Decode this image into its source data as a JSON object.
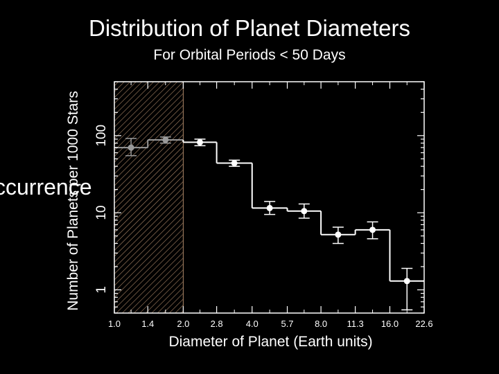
{
  "slide": {
    "title": "Distribution of Planet Diameters",
    "subtitle": "For Orbital Periods < 50 Days",
    "overlay_text": "ccurrence"
  },
  "colors": {
    "background": "#000000",
    "foreground": "#ffffff",
    "excluded_points": "#9a9a9a",
    "hatch": "#b08a6a"
  },
  "chart_data": {
    "type": "histogram-step",
    "x_scale": "log",
    "y_scale": "log",
    "xlim": [
      1.0,
      22.6
    ],
    "ylim": [
      0.5,
      500
    ],
    "xlabel": "Diameter of Planet (Earth units)",
    "ylabel": "Number of Planets per 1000 Stars",
    "x_ticks": [
      {
        "value": 1.0,
        "label": "1.0"
      },
      {
        "value": 1.4,
        "label": "1.4"
      },
      {
        "value": 2.0,
        "label": "2.0"
      },
      {
        "value": 2.8,
        "label": "2.8"
      },
      {
        "value": 4.0,
        "label": "4.0"
      },
      {
        "value": 5.7,
        "label": "5.7"
      },
      {
        "value": 8.0,
        "label": "8.0"
      },
      {
        "value": 11.3,
        "label": "11.3"
      },
      {
        "value": 16.0,
        "label": "16.0"
      },
      {
        "value": 22.6,
        "label": "22.6"
      }
    ],
    "y_ticks": [
      {
        "value": 1,
        "label": "1"
      },
      {
        "value": 10,
        "label": "10"
      },
      {
        "value": 100,
        "label": "100"
      }
    ],
    "shaded_region": {
      "x_from": 1.0,
      "x_to": 2.0
    },
    "bins": [
      {
        "lo": 1.0,
        "hi": 1.4,
        "value": 70,
        "err_lo": 55,
        "err_hi": 92,
        "excluded": true
      },
      {
        "lo": 1.4,
        "hi": 2.0,
        "value": 88,
        "err_lo": 80,
        "err_hi": 96,
        "excluded": true
      },
      {
        "lo": 2.0,
        "hi": 2.8,
        "value": 82,
        "err_lo": 74,
        "err_hi": 90,
        "excluded": false
      },
      {
        "lo": 2.8,
        "hi": 4.0,
        "value": 44,
        "err_lo": 40,
        "err_hi": 48,
        "excluded": false
      },
      {
        "lo": 4.0,
        "hi": 5.7,
        "value": 11.5,
        "err_lo": 9.5,
        "err_hi": 14,
        "excluded": false
      },
      {
        "lo": 5.7,
        "hi": 8.0,
        "value": 10.5,
        "err_lo": 8.5,
        "err_hi": 13,
        "excluded": false
      },
      {
        "lo": 8.0,
        "hi": 11.3,
        "value": 5.2,
        "err_lo": 4.0,
        "err_hi": 6.5,
        "excluded": false
      },
      {
        "lo": 11.3,
        "hi": 16.0,
        "value": 6.0,
        "err_lo": 4.6,
        "err_hi": 7.6,
        "excluded": false
      },
      {
        "lo": 16.0,
        "hi": 22.6,
        "value": 1.3,
        "err_lo": 0.55,
        "err_hi": 1.9,
        "excluded": false
      }
    ],
    "grid": false,
    "legend": "none"
  }
}
